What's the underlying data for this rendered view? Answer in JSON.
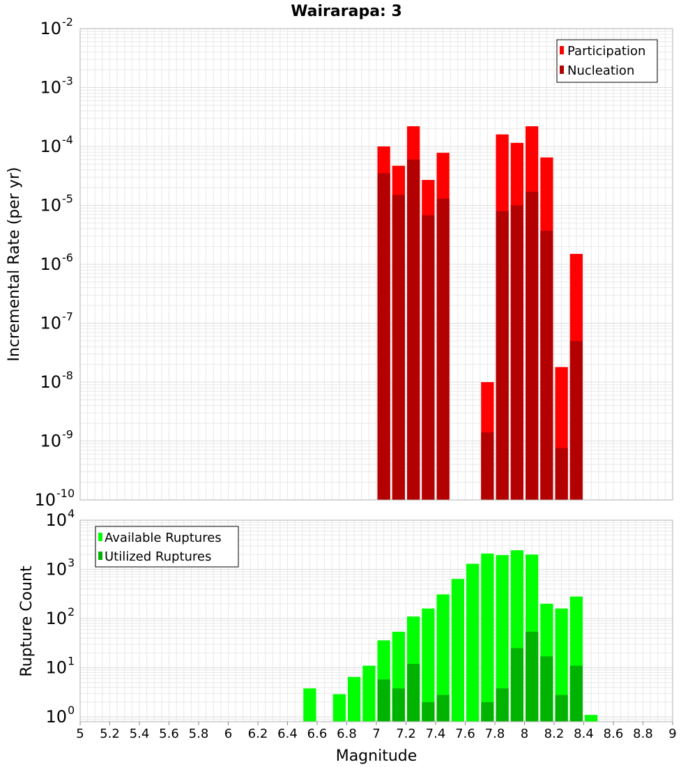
{
  "title": "Wairarapa: 3",
  "xlabel": "Magnitude",
  "x_ticks": [
    "5",
    "5.2",
    "5.4",
    "5.6",
    "5.8",
    "6",
    "6.2",
    "6.4",
    "6.6",
    "6.8",
    "7",
    "7.2",
    "7.4",
    "7.6",
    "7.8",
    "8",
    "8.2",
    "8.4",
    "8.6",
    "8.8",
    "9"
  ],
  "colors": {
    "participation": "#ff0000",
    "nucleation": "#b30000",
    "available": "#00ff00",
    "utilized": "#00b300",
    "grid": "#e8e8e8",
    "frame": "#b0b0b0"
  },
  "chart_data": [
    {
      "type": "bar",
      "ylabel": "Incremental Rate (per yr)",
      "yscale": "log",
      "ylim": [
        1e-10,
        0.01
      ],
      "xlim": [
        5,
        9
      ],
      "y_tick_base": "10",
      "y_tick_exponents": [
        "-10",
        "-9",
        "-8",
        "-7",
        "-6",
        "-5",
        "-4",
        "-3",
        "-2"
      ],
      "legend_position": "top-right",
      "x": [
        7.05,
        7.15,
        7.25,
        7.35,
        7.45,
        7.75,
        7.85,
        7.95,
        8.05,
        8.15,
        8.25,
        8.35
      ],
      "series": [
        {
          "name": "Participation",
          "values": [
            0.0001,
            4.7e-05,
            0.00022,
            2.7e-05,
            7.8e-05,
            1e-08,
            0.00016,
            0.000115,
            0.00022,
            6.5e-05,
            1.8e-08,
            1.5e-06
          ]
        },
        {
          "name": "Nucleation",
          "values": [
            3.5e-05,
            1.5e-05,
            6e-05,
            6.8e-06,
            1.3e-05,
            1.4e-09,
            8e-06,
            1e-05,
            1.7e-05,
            3.7e-06,
            7.6e-10,
            5e-08
          ]
        }
      ]
    },
    {
      "type": "bar",
      "ylabel": "Rupture Count",
      "yscale": "log",
      "ylim": [
        0.8,
        10000
      ],
      "xlim": [
        5,
        9
      ],
      "y_tick_base": "10",
      "y_tick_exponents": [
        "0",
        "1",
        "2",
        "3",
        "4"
      ],
      "legend_position": "top-left",
      "x": [
        6.55,
        6.75,
        6.85,
        6.95,
        7.05,
        7.15,
        7.25,
        7.35,
        7.45,
        7.55,
        7.65,
        7.75,
        7.85,
        7.95,
        8.05,
        8.15,
        8.25,
        8.35,
        8.45
      ],
      "series": [
        {
          "name": "Available Ruptures",
          "values": [
            3.8,
            2.9,
            6.5,
            11,
            36,
            54,
            110,
            160,
            310,
            640,
            1300,
            2100,
            1950,
            2450,
            2000,
            200,
            160,
            280,
            1.1
          ]
        },
        {
          "name": "Utilized Ruptures",
          "values": [
            null,
            null,
            null,
            null,
            5.8,
            3.8,
            12,
            2.0,
            2.8,
            null,
            null,
            2.0,
            3.8,
            25,
            54,
            17,
            2.8,
            11,
            null
          ]
        }
      ]
    }
  ]
}
